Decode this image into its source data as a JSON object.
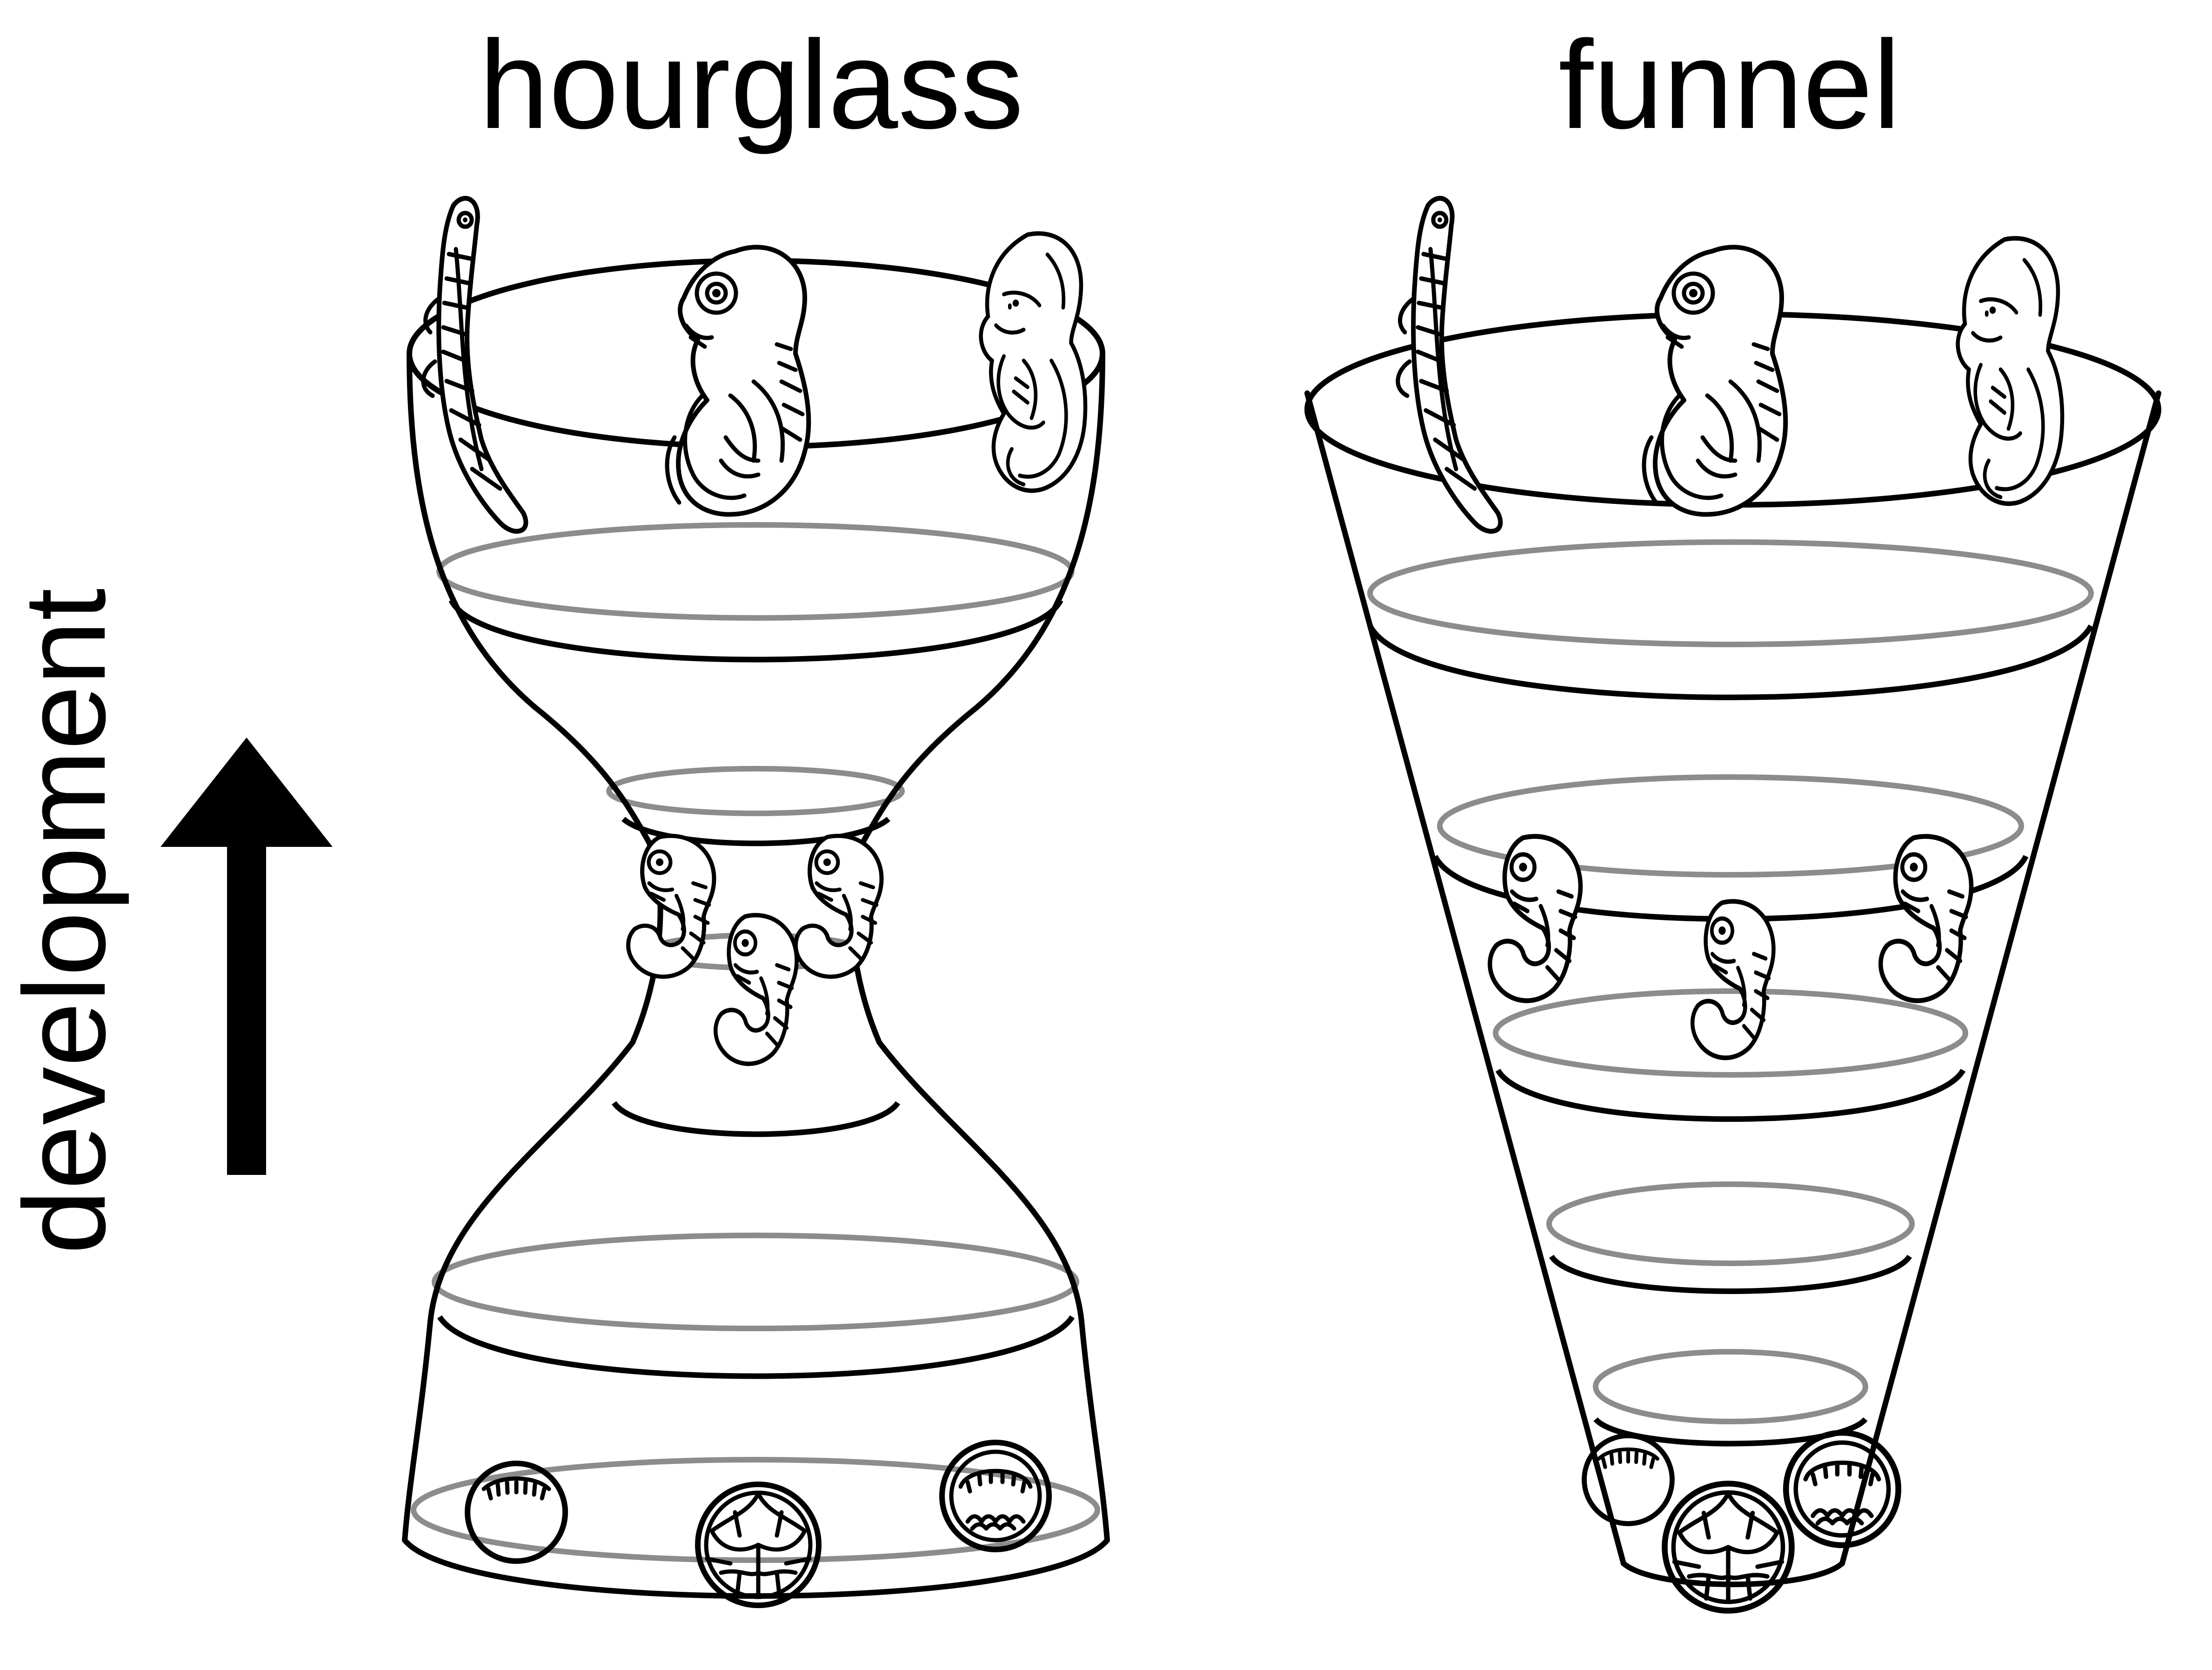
{
  "panels": {
    "hourglass": {
      "label": "hourglass"
    },
    "funnel": {
      "label": "funnel"
    }
  },
  "axis": {
    "label": "development",
    "arrow_direction": "up"
  },
  "colors": {
    "ink": "#000000",
    "back_ring": "#8c8c8c",
    "background": "#ffffff"
  },
  "icons": [
    "arrow-up-icon",
    "fish-embryo-icon",
    "chick-embryo-icon",
    "human-embryo-icon",
    "pharyngula-embryo-icon",
    "egg-cell-icon",
    "cleavage-embryo-icon"
  ]
}
